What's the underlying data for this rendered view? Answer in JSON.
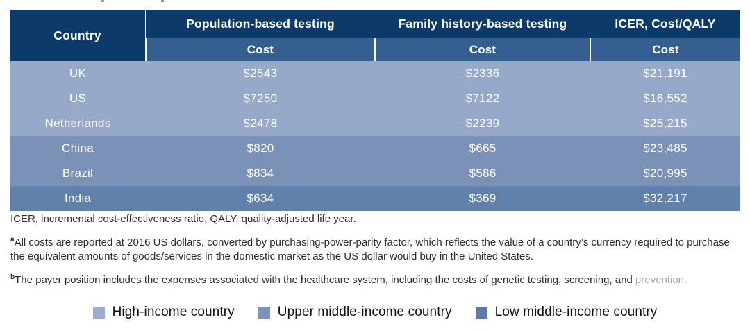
{
  "colors": {
    "header_bg": "#0c3a69",
    "subheader_bg": "#345f90",
    "row_high": "#97a9c8",
    "row_upper": "#7b92b8",
    "row_low": "#6181ad",
    "header_text": "#ffffff",
    "note_text": "#2d2d2d",
    "faded_text": "#a8a8a8",
    "legend_high": "#9cadcd",
    "legend_upper": "#7b93ba",
    "legend_low": "#5a7dac"
  },
  "table": {
    "columns": {
      "country": "Country",
      "population": "Population-based testing",
      "family": "Family history-based testing",
      "icer": "ICER, Cost/QALY"
    },
    "cost_header": "Cost",
    "rows": [
      {
        "country": "UK",
        "pop_cost": "$2543",
        "fam_cost": "$2336",
        "icer_cost": "$21,191",
        "income_group": "high"
      },
      {
        "country": "US",
        "pop_cost": "$7250",
        "fam_cost": "$7122",
        "icer_cost": "$16,552",
        "income_group": "high"
      },
      {
        "country": "Netherlands",
        "pop_cost": "$2478",
        "fam_cost": "$2239",
        "icer_cost": "$25,215",
        "income_group": "high"
      },
      {
        "country": "China",
        "pop_cost": "$820",
        "fam_cost": "$665",
        "icer_cost": "$23,485",
        "income_group": "upper-middle"
      },
      {
        "country": "Brazil",
        "pop_cost": "$834",
        "fam_cost": "$586",
        "icer_cost": "$20,995",
        "income_group": "upper-middle"
      },
      {
        "country": "India",
        "pop_cost": "$634",
        "fam_cost": "$369",
        "icer_cost": "$32,217",
        "income_group": "low-middle"
      }
    ]
  },
  "notes": {
    "abbreviations": "ICER, incremental cost-effectiveness ratio; QALY, quality-adjusted life year.",
    "footnote_a_marker": "a",
    "footnote_a": "All costs are reported at 2016 US dollars, converted by purchasing-power-parity factor, which reflects the value of a country’s currency required to purchase the equivalent amounts of goods/services in the domestic market as the US dollar would buy in the United States.",
    "footnote_b_marker": "b",
    "footnote_b": "The payer position includes the expenses associated with the healthcare system, including the costs of genetic testing, screening, and ",
    "footnote_b_faded": "prevention."
  },
  "legend": {
    "items": [
      {
        "label": "High-income country",
        "group": "high"
      },
      {
        "label": "Upper middle-income country",
        "group": "upper-middle"
      },
      {
        "label": "Low middle-income country",
        "group": "low-middle"
      }
    ]
  }
}
